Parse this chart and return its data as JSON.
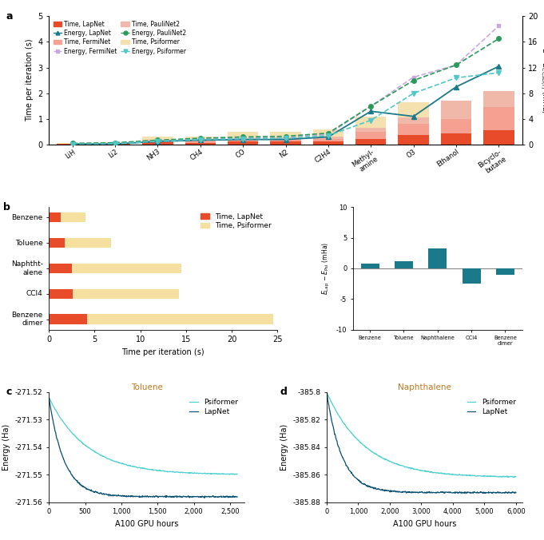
{
  "panel_a": {
    "categories": [
      "LiH",
      "Li2",
      "NH3",
      "CH4",
      "CO",
      "N2",
      "C2H4",
      "Methyl-\namine",
      "O3",
      "Ethanol",
      "Bicyclo-\nbutane"
    ],
    "time_lapnet": [
      0.03,
      0.03,
      0.1,
      0.08,
      0.12,
      0.12,
      0.12,
      0.22,
      0.38,
      0.45,
      0.55
    ],
    "time_ferminet": [
      0.04,
      0.05,
      0.15,
      0.12,
      0.2,
      0.2,
      0.22,
      0.5,
      0.8,
      1.0,
      1.45
    ],
    "time_paulinet2": [
      0.04,
      0.06,
      0.18,
      0.18,
      0.25,
      0.28,
      0.32,
      0.65,
      1.05,
      1.7,
      2.1
    ],
    "time_psiformer": [
      0.05,
      0.1,
      0.3,
      0.3,
      0.5,
      0.5,
      0.6,
      1.1,
      1.65,
      1.65,
      2.05
    ],
    "energy_lapnet": [
      0.1,
      0.1,
      0.5,
      0.7,
      0.8,
      0.8,
      1.2,
      5.2,
      4.4,
      9.0,
      12.2
    ],
    "energy_ferminet": [
      0.2,
      0.2,
      0.6,
      0.9,
      1.0,
      1.1,
      1.6,
      6.0,
      10.5,
      12.4,
      18.5
    ],
    "energy_paulinet2": [
      0.2,
      0.3,
      0.7,
      1.0,
      1.2,
      1.3,
      1.8,
      6.0,
      10.0,
      12.4,
      16.5
    ],
    "energy_psiformer": [
      0.05,
      0.15,
      0.55,
      0.8,
      0.9,
      1.0,
      1.4,
      3.8,
      8.0,
      10.4,
      11.2
    ],
    "ylim_left": [
      0,
      5.0
    ],
    "ylim_right": [
      0,
      20
    ],
    "yticks_left": [
      0,
      1.0,
      2.0,
      3.0,
      4.0,
      5.0
    ],
    "yticks_right": [
      0,
      4,
      8,
      12,
      16,
      20
    ],
    "color_lapnet_time": "#E84B2A",
    "color_ferminet_time": "#F5A090",
    "color_paulinet2_time": "#F0B8A8",
    "color_psiformer_time": "#F5E0B0",
    "color_lapnet_energy": "#1A7A8A",
    "color_ferminet_energy": "#C8A8E0",
    "color_paulinet2_energy": "#2A9A5A",
    "color_psiformer_energy": "#50C8C8"
  },
  "panel_b": {
    "categories_top_to_bottom": [
      "Benzene",
      "Toluene",
      "Naphtht-\nalene",
      "CCl4",
      "Benzene\ndimer"
    ],
    "time_lapnet": [
      1.3,
      1.7,
      2.5,
      2.6,
      4.2
    ],
    "time_psiformer": [
      4.0,
      6.8,
      14.5,
      14.2,
      24.5
    ],
    "inset_values": [
      0.8,
      1.2,
      3.2,
      -2.5,
      -1.0
    ],
    "inset_categories": [
      "Benzene",
      "Toluene",
      "Naphthalene",
      "CCl4",
      "Benzene\ndimer"
    ],
    "color_lapnet": "#E84B2A",
    "color_psiformer": "#F5E0A0",
    "color_inset": "#1A7A8A",
    "xlim": [
      0,
      25
    ]
  },
  "panel_c": {
    "title": "Toluene",
    "xlabel": "A100 GPU hours",
    "ylabel": "Energy (Ha)",
    "ylim": [
      -271.56,
      -271.52
    ],
    "yticks": [
      -271.56,
      -271.55,
      -271.54,
      -271.53,
      -271.52
    ],
    "xlim": [
      0,
      2700
    ],
    "xticks": [
      0,
      500,
      1000,
      1500,
      2000,
      2500
    ],
    "xtick_labels": [
      "0",
      "500",
      "1,000",
      "1,500",
      "2,000",
      "2,500"
    ],
    "color_psiformer": "#4DD0D0",
    "color_lapnet": "#0A5070"
  },
  "panel_d": {
    "title": "Naphthalene",
    "xlabel": "A100 GPU hours",
    "ylabel": "Energy (Ha)",
    "ylim": [
      -385.88,
      -385.8
    ],
    "yticks": [
      -385.88,
      -385.86,
      -385.84,
      -385.82,
      -385.8
    ],
    "xlim": [
      0,
      6200
    ],
    "xticks": [
      0,
      1000,
      2000,
      3000,
      4000,
      5000,
      6000
    ],
    "xtick_labels": [
      "0",
      "1,000",
      "2,000",
      "3,000",
      "4,000",
      "5,000",
      "6,000"
    ],
    "color_psiformer": "#4DD0D0",
    "color_lapnet": "#0A5070"
  }
}
